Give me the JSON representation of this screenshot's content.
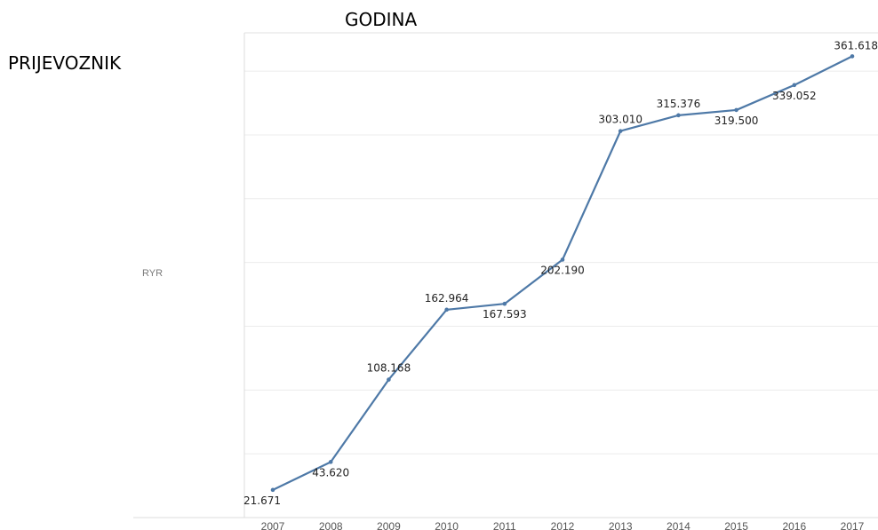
{
  "header": {
    "column_field": "GODINA",
    "row_field": "PRIJEVOZNIK"
  },
  "row_label": "RYR",
  "chart_data": {
    "type": "line",
    "x": [
      "2007",
      "2008",
      "2009",
      "2010",
      "2011",
      "2012",
      "2013",
      "2014",
      "2015",
      "2016",
      "2017"
    ],
    "values": [
      21671,
      43620,
      108168,
      162964,
      167593,
      202190,
      303010,
      315376,
      319500,
      339052,
      361618
    ],
    "value_labels": [
      "21.671",
      "43.620",
      "108.168",
      "162.964",
      "167.593",
      "202.190",
      "303.010",
      "315.376",
      "319.500",
      "339.052",
      "361.618"
    ],
    "label_pos": [
      "below",
      "below",
      "above",
      "above",
      "below",
      "below",
      "above",
      "above",
      "below",
      "below",
      "above"
    ],
    "ylim": [
      0,
      380000
    ],
    "grid": true,
    "line_color": "#4e79a7",
    "grid_color": "#ececec"
  }
}
